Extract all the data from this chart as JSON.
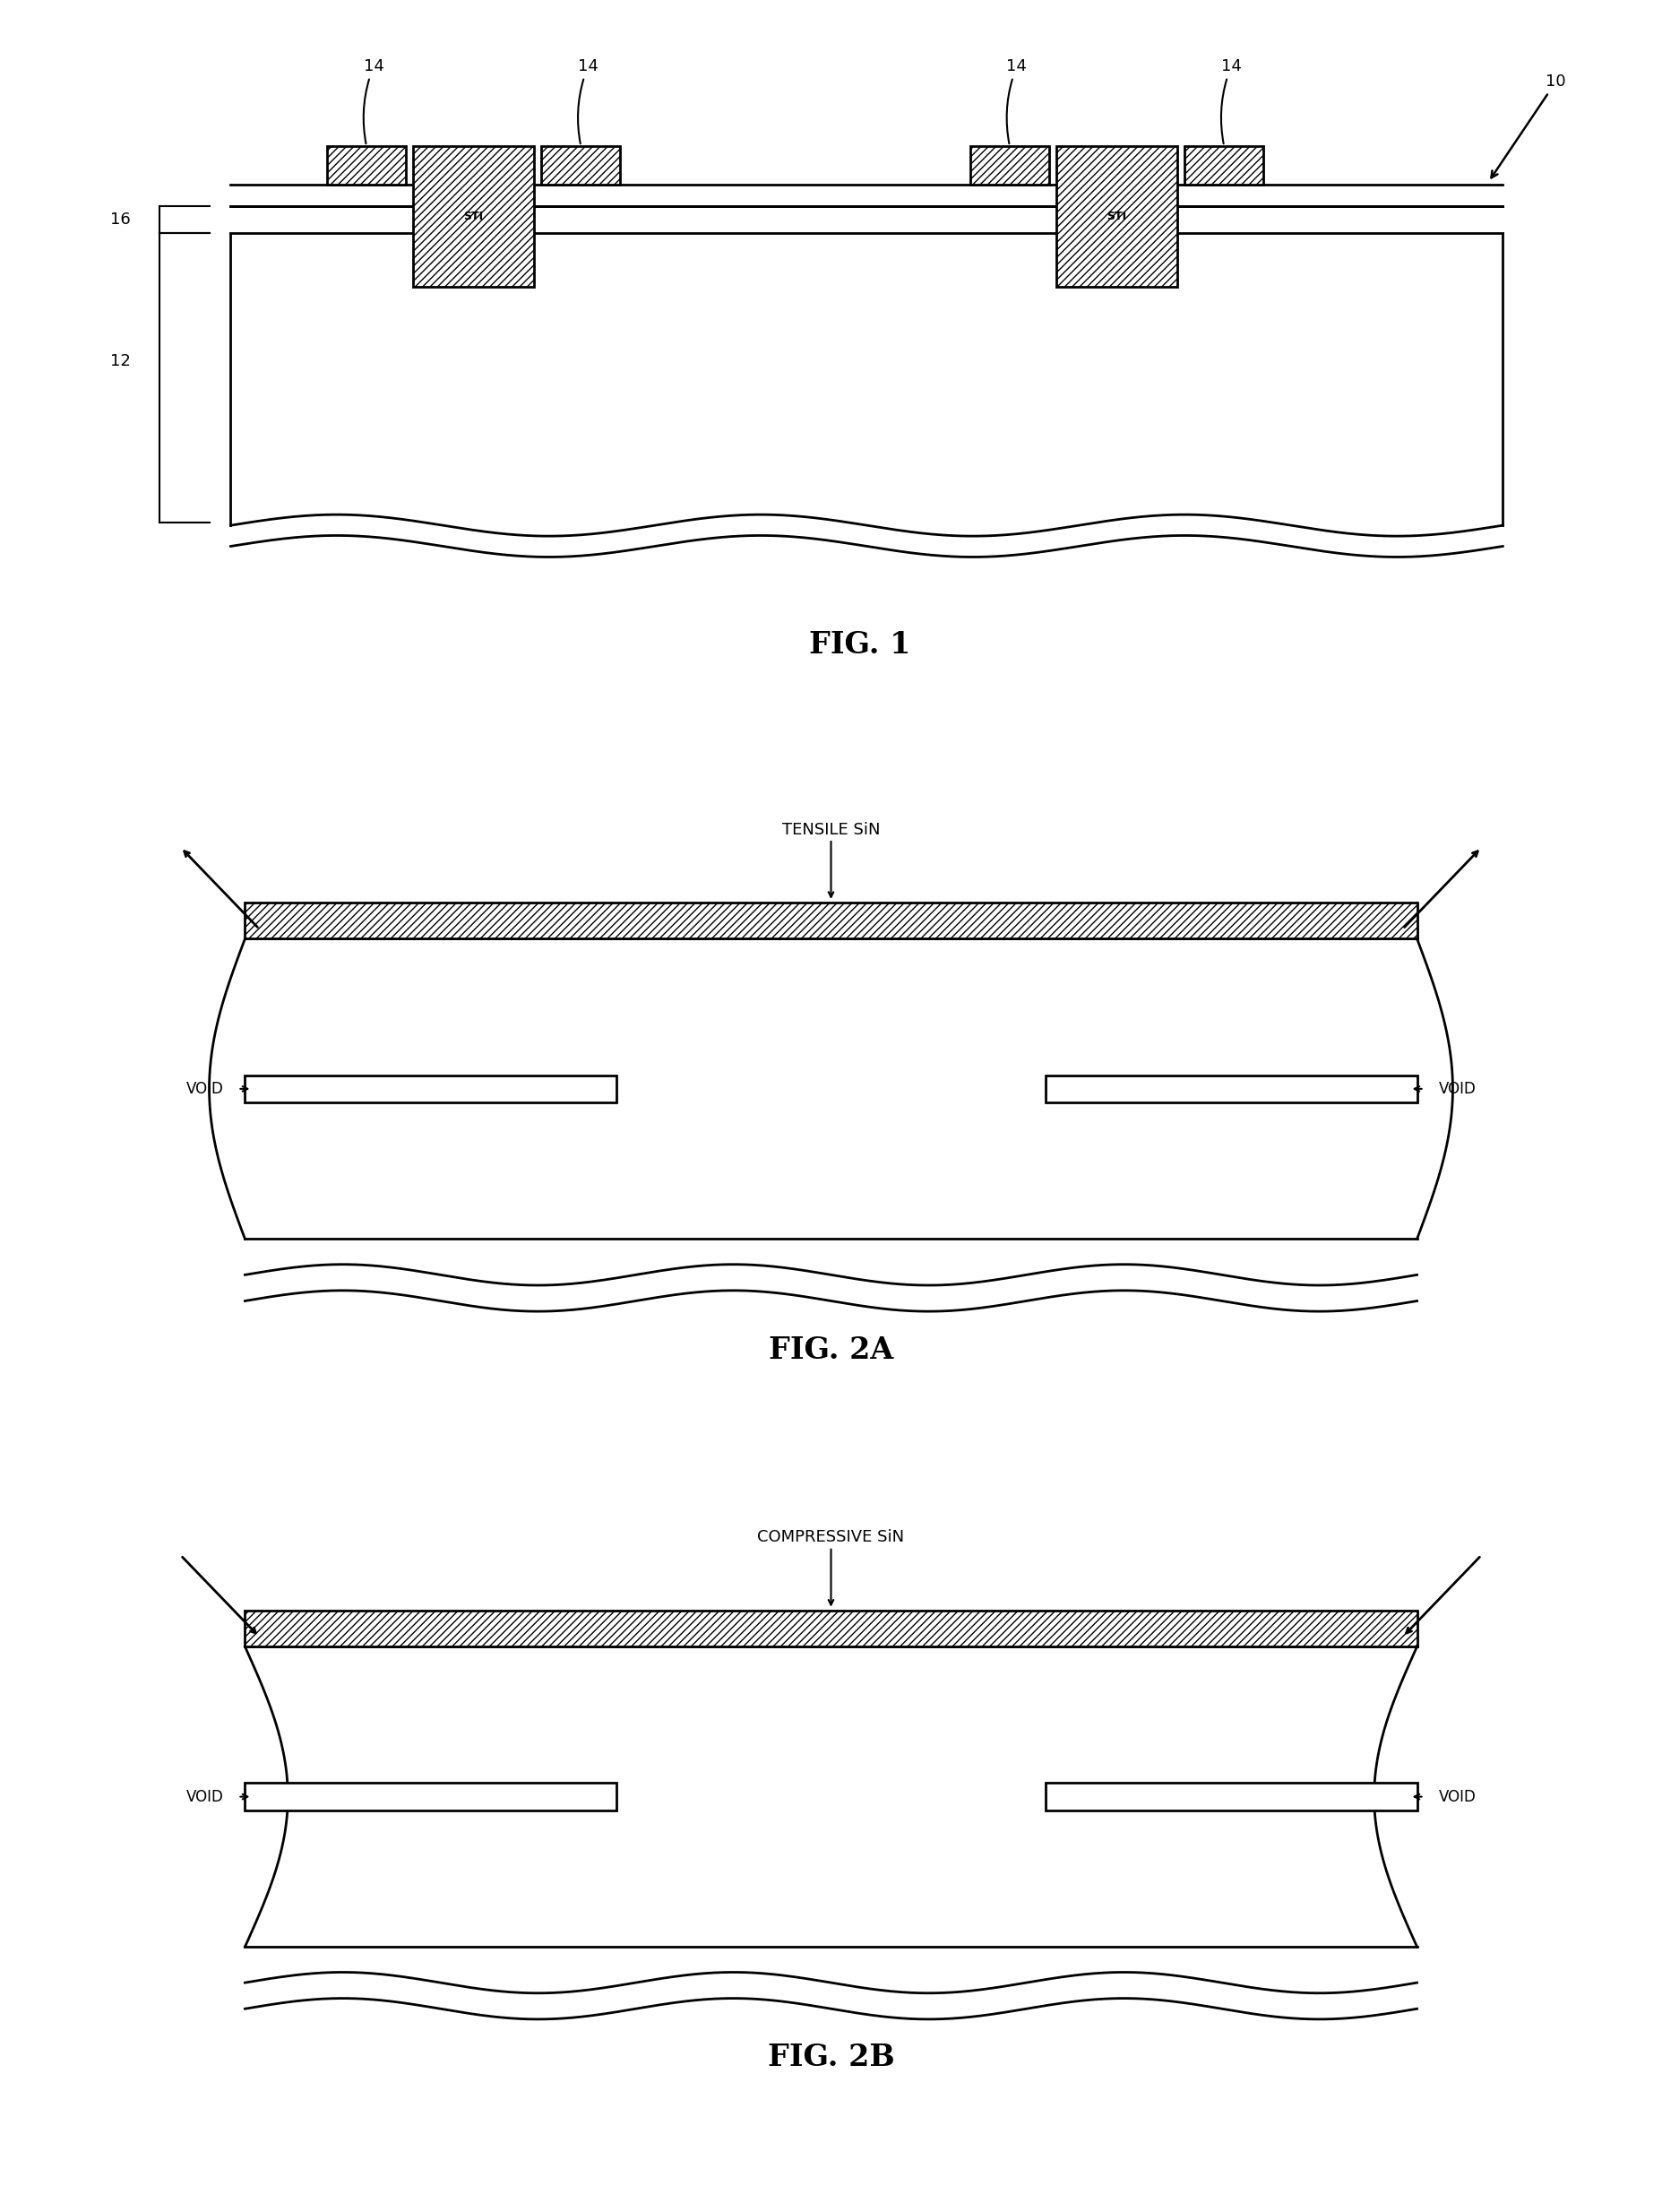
{
  "fig_width": 18.55,
  "fig_height": 24.68,
  "bg_color": "#ffffff",
  "line_color": "#000000",
  "fig1_label": "FIG. 1",
  "fig2a_label": "FIG. 2A",
  "fig2b_label": "FIG. 2B",
  "tensile_label": "TENSILE SiN",
  "compressive_label": "COMPRESSIVE SiN",
  "void_label": "VOID",
  "ref_10": "10",
  "ref_12": "12",
  "ref_14": "14",
  "ref_16": "16",
  "sti_label": "STI"
}
